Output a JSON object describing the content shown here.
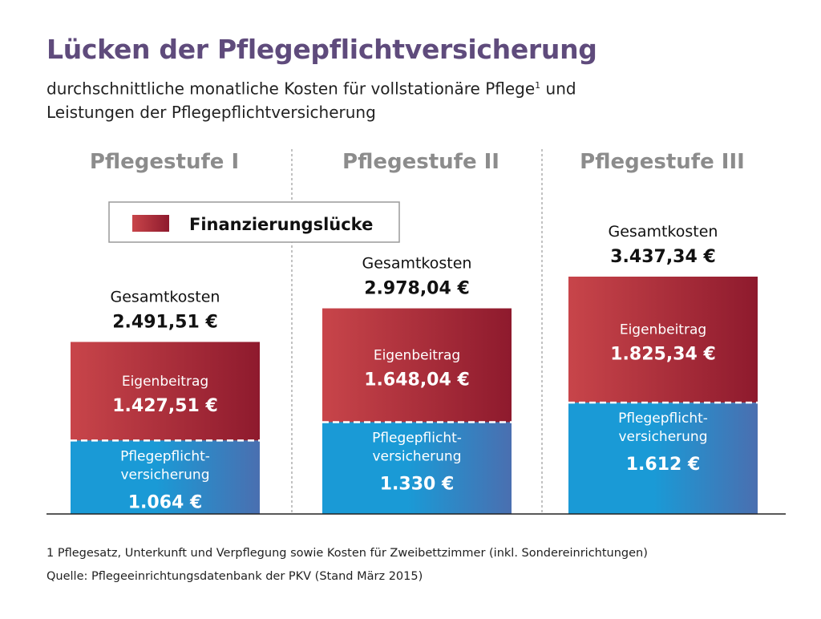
{
  "colors": {
    "title": "#5f4b7c",
    "category": "#8c8c8c",
    "red_light": "#c8454a",
    "red_dark": "#8e1a2d",
    "blue_light": "#1a9ad6",
    "blue_dark": "#4a6fb0"
  },
  "header": {
    "title": "Lücken der Pflegepflichtversicherung",
    "subtitle_line1": "durchschnittliche monatliche Kosten für vollstationäre Pflege",
    "subtitle_sup": "1",
    "subtitle_line1_end": " und",
    "subtitle_line2": "Leistungen der Pflegepflichtversicherung"
  },
  "chart_data": {
    "type": "bar",
    "stacked": true,
    "categories": [
      "Pflegestufe I",
      "Pflegestufe II",
      "Pflegestufe III"
    ],
    "total_label": "Gesamtkosten",
    "totals": [
      2491.51,
      2978.04,
      3437.34
    ],
    "total_texts": [
      "2.491,51 €",
      "2.978,04 €",
      "3.437,34 €"
    ],
    "series": [
      {
        "name": "Pflegepflicht-versicherung",
        "label_lines": [
          "Pflegepflicht-",
          "versicherung"
        ],
        "values": [
          1064,
          1330,
          1612
        ],
        "value_texts": [
          "1.064 €",
          "1.330 €",
          "1.612 €"
        ]
      },
      {
        "name": "Eigenbeitrag",
        "label_lines": [
          "Eigenbeitrag"
        ],
        "values": [
          1427.51,
          1648.04,
          1825.34
        ],
        "value_texts": [
          "1.427,51 €",
          "1.648,04 €",
          "1.825,34 €"
        ]
      }
    ],
    "legend": {
      "label": "Finanzierungslücke",
      "position": "top-left"
    },
    "ylim": [
      0,
      3437.34
    ]
  },
  "footnotes": {
    "note1": "1 Pflegesatz, Unterkunft und Verpflegung sowie Kosten für Zweibettzimmer (inkl. Sondereinrichtungen)",
    "source": "Quelle: Pflegeeinrichtungsdatenbank der PKV (Stand März 2015)"
  }
}
